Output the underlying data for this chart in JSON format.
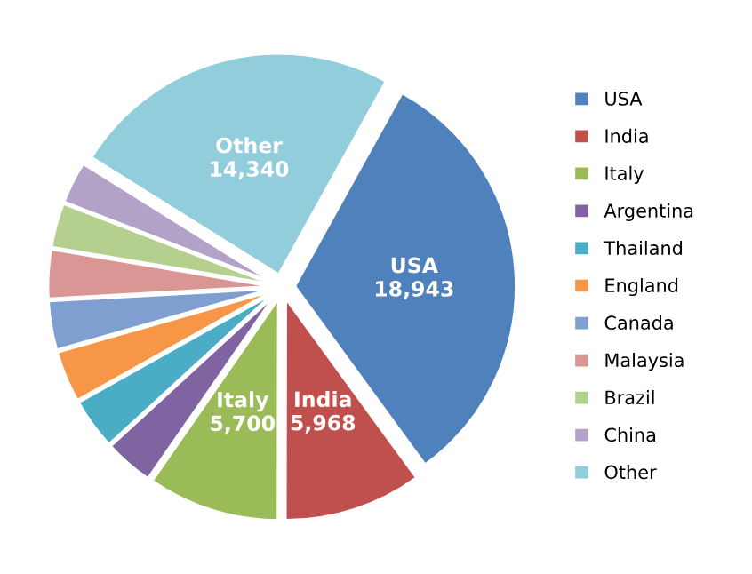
{
  "chart_data": {
    "type": "pie",
    "categories": [
      "USA",
      "India",
      "Italy",
      "Argentina",
      "Thailand",
      "England",
      "Canada",
      "Malaysia",
      "Brazil",
      "China",
      "Other"
    ],
    "values": [
      18943,
      5968,
      5700,
      2100,
      2200,
      2200,
      2100,
      2100,
      1900,
      1800,
      14340
    ],
    "value_labels": [
      "18,943",
      "5,968",
      "5,700",
      null,
      null,
      null,
      null,
      null,
      null,
      null,
      "14,340"
    ],
    "colors": [
      "#4f81bd",
      "#c0504d",
      "#9bbb59",
      "#8064a2",
      "#4bacc6",
      "#f79646",
      "#7f9fd0",
      "#d99694",
      "#b5cf8f",
      "#b3a2c7",
      "#92cddc"
    ],
    "legend": "right"
  }
}
